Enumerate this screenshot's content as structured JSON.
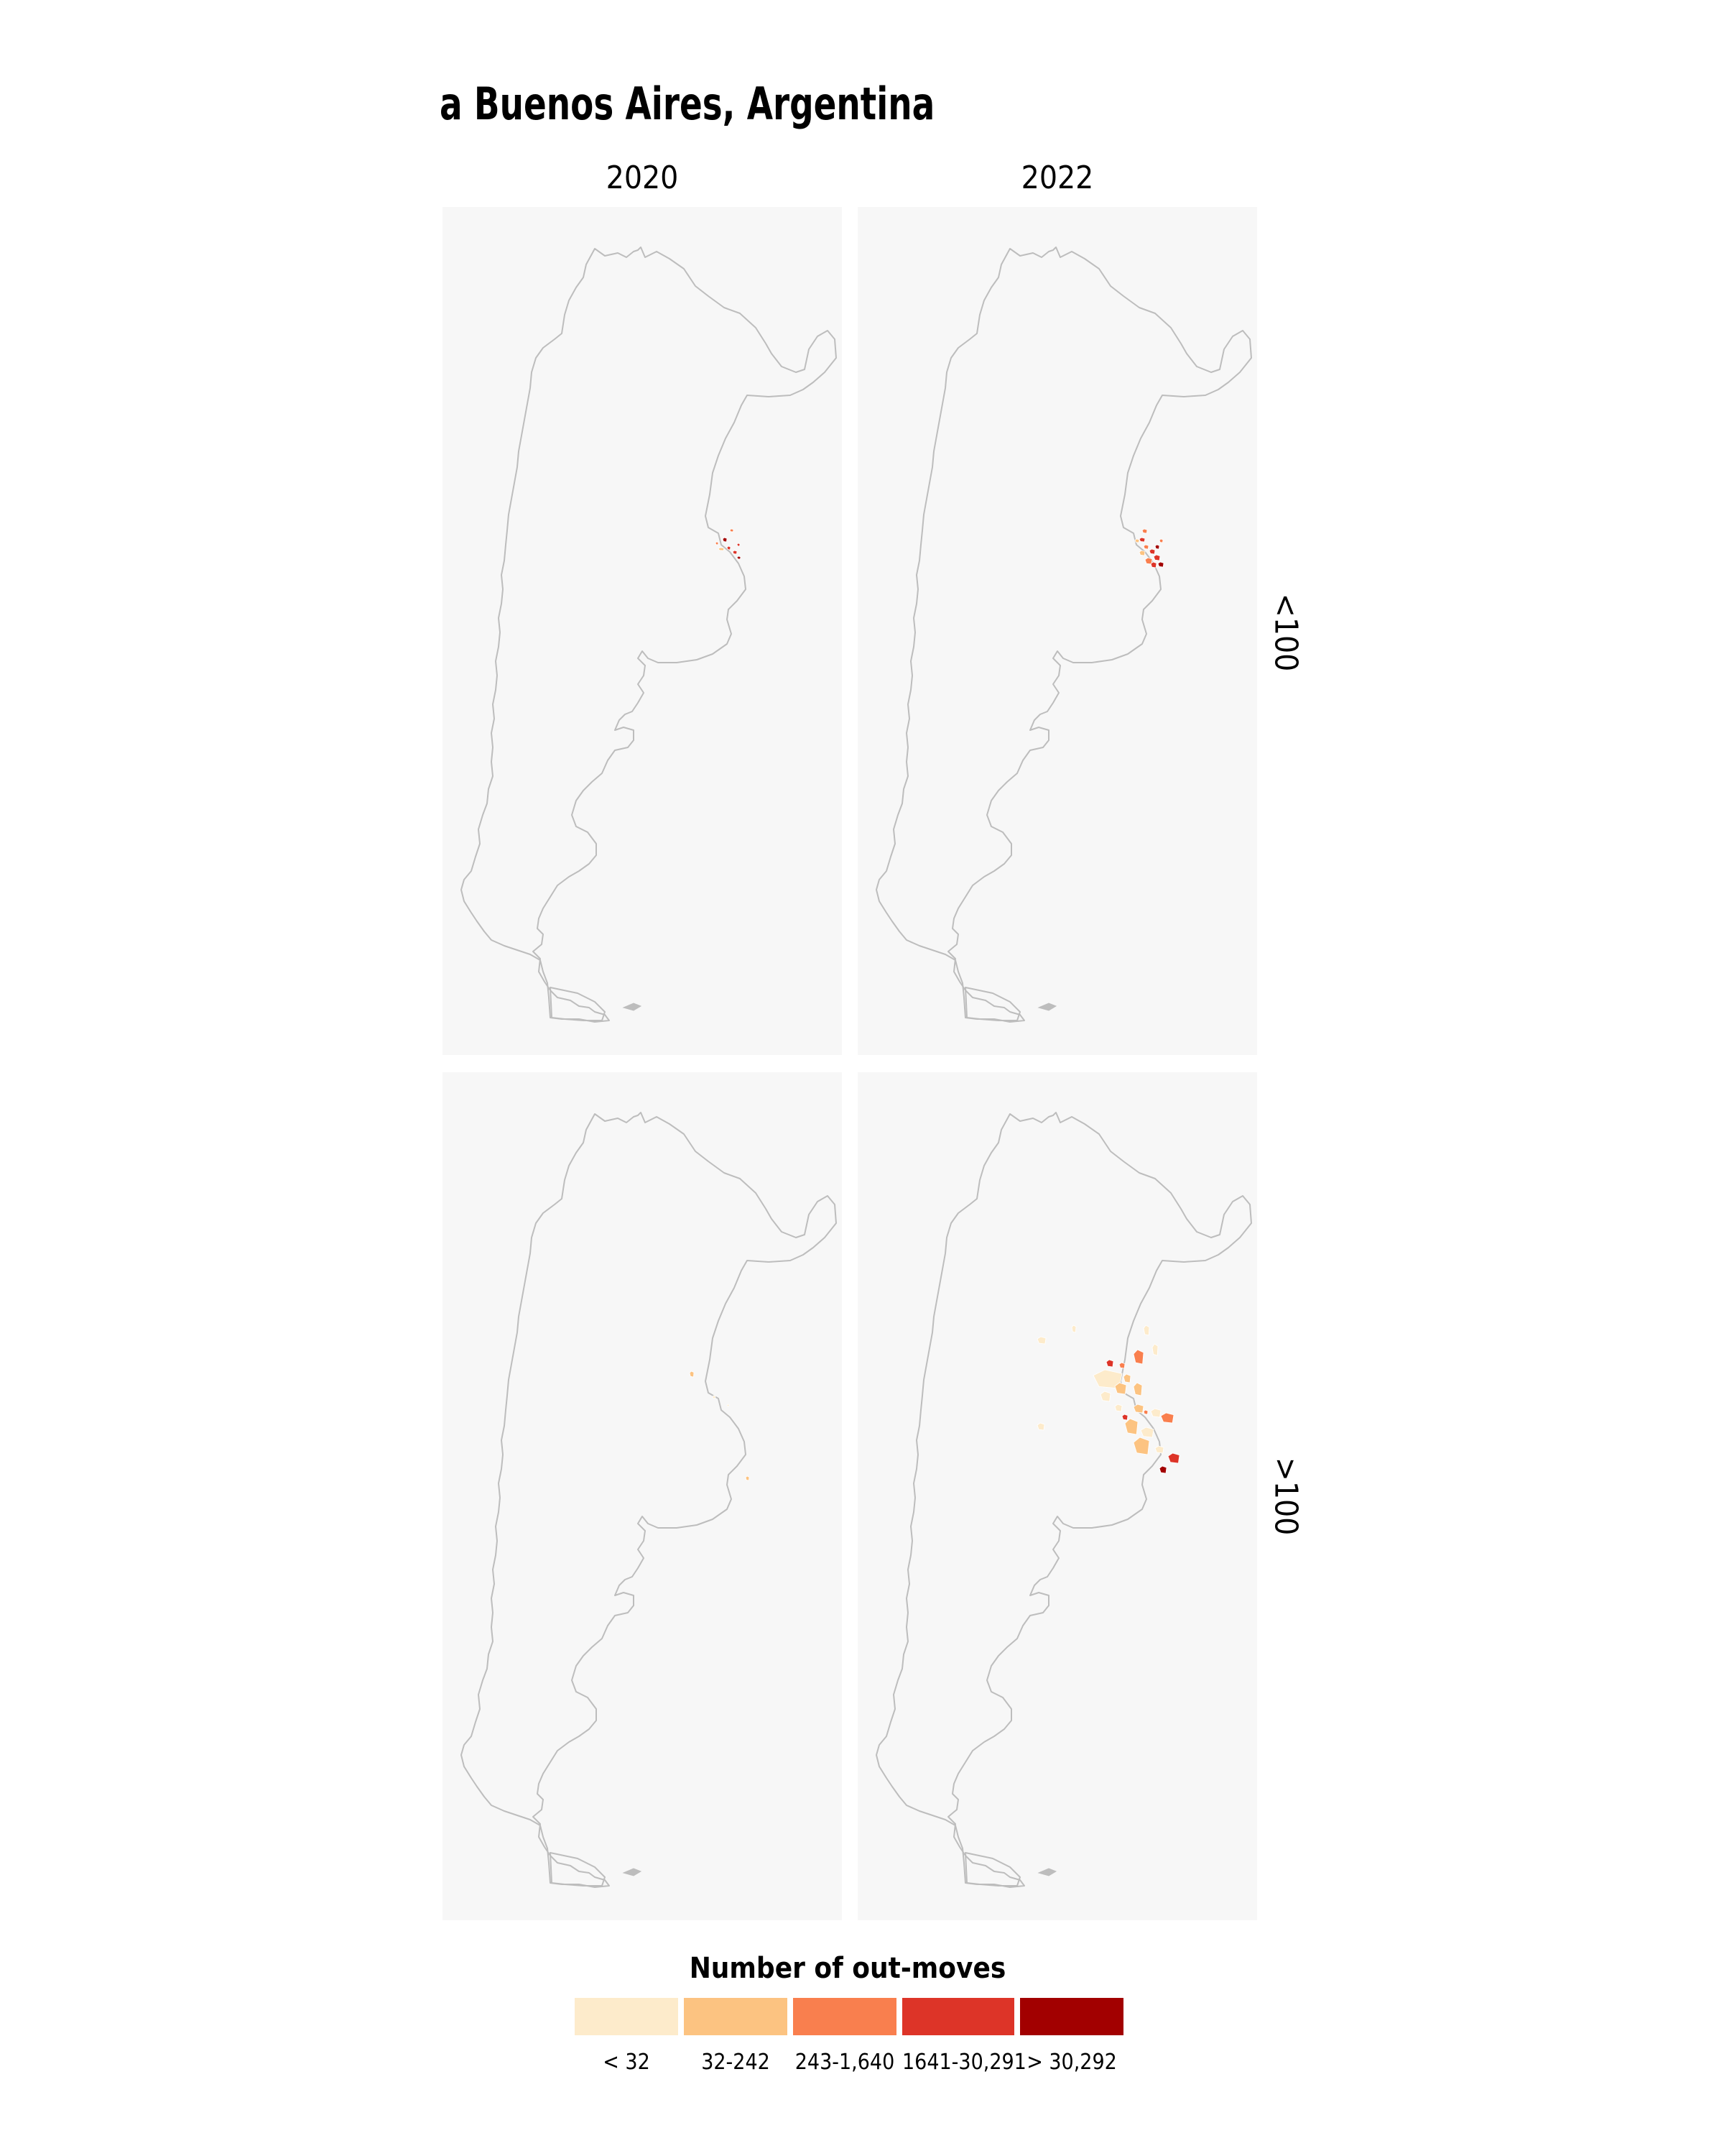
{
  "title": "a Buenos Aires, Argentina",
  "columns": [
    "2020",
    "2022"
  ],
  "rows": [
    "<100",
    ">100"
  ],
  "legend": {
    "title": "Number of out-moves",
    "items": [
      {
        "label": "< 32",
        "color": "#fdebcb"
      },
      {
        "label": "32-242",
        "color": "#fcc381"
      },
      {
        "label": "243-1,640",
        "color": "#f97f4e"
      },
      {
        "label": "1641-30,291",
        "color": "#dd3428"
      },
      {
        "label": "> 30,292",
        "color": "#a20000"
      }
    ]
  },
  "colors": {
    "panel_background": "#f7f7f7",
    "outline": "#bdbdbd"
  }
}
